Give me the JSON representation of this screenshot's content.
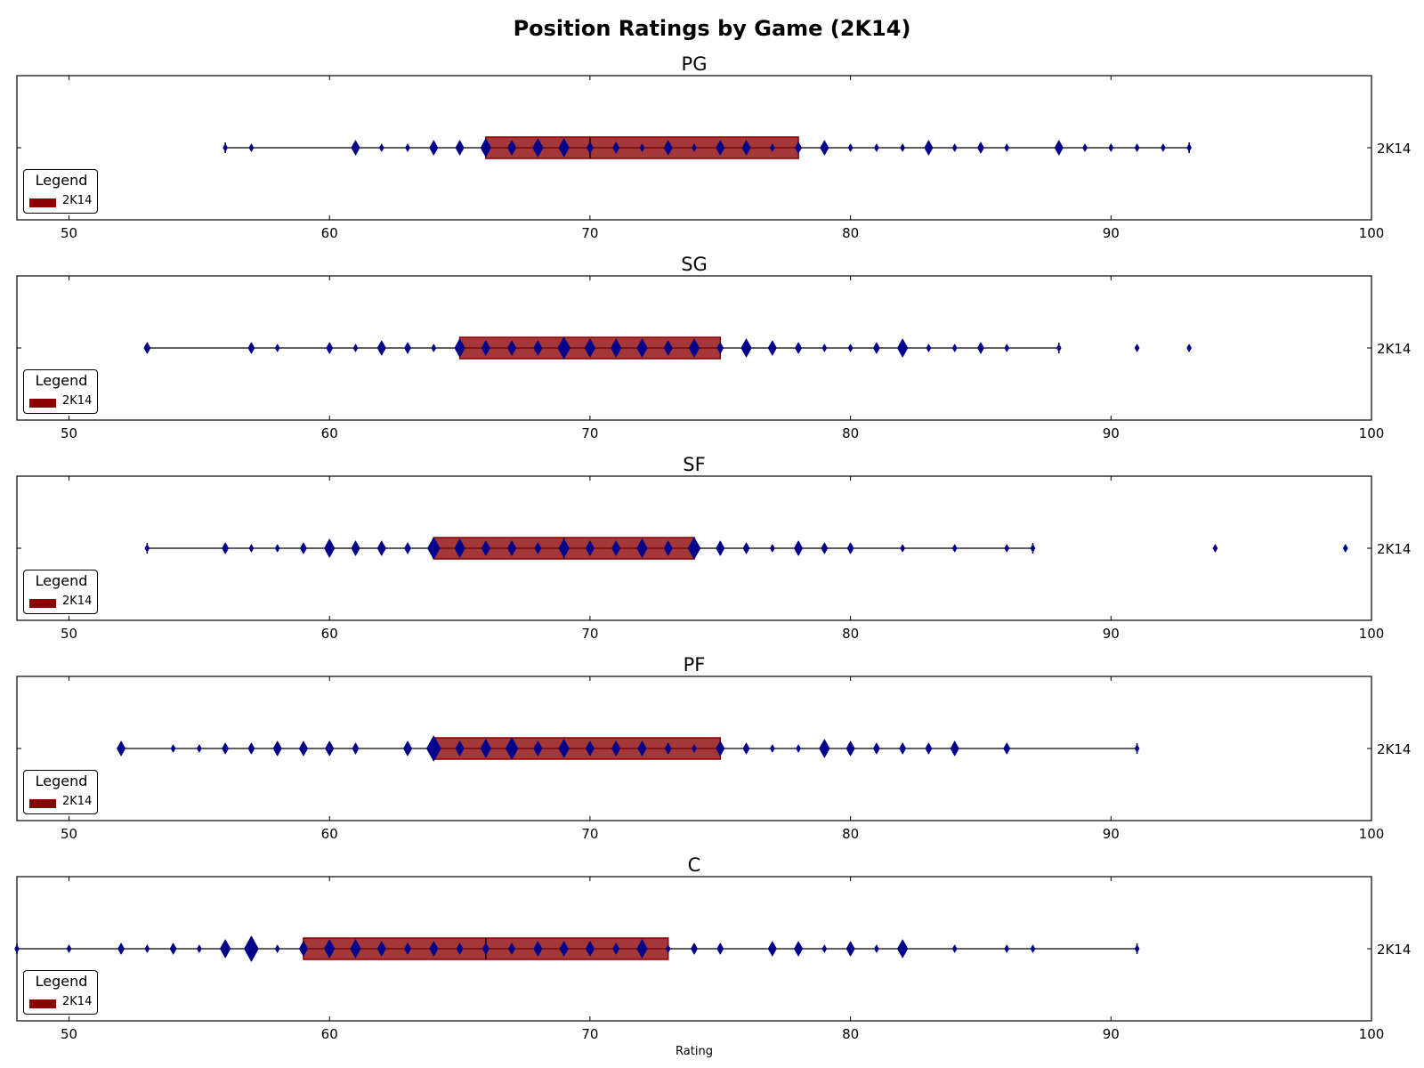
{
  "title": "Position Ratings by Game (2K14)",
  "xlabel": "Rating",
  "legend_title": "Legend",
  "colors": {
    "box": "#8b0000",
    "marker": "#00008b",
    "whisker": "#000000"
  },
  "chart_data": [
    {
      "type": "violin-box",
      "title": "PG",
      "category": "2K14",
      "legend_entry": "2K14",
      "xlim": [
        48,
        100
      ],
      "xticks": [
        50,
        60,
        70,
        80,
        90,
        100
      ],
      "box": {
        "q1": 66,
        "median": 70,
        "q3": 78
      },
      "whiskers": [
        56,
        93
      ],
      "outliers": [],
      "points": [
        {
          "x": 56,
          "n": 1
        },
        {
          "x": 57,
          "n": 1
        },
        {
          "x": 61,
          "n": 3
        },
        {
          "x": 62,
          "n": 1
        },
        {
          "x": 63,
          "n": 1
        },
        {
          "x": 64,
          "n": 3
        },
        {
          "x": 65,
          "n": 3
        },
        {
          "x": 66,
          "n": 4
        },
        {
          "x": 67,
          "n": 3
        },
        {
          "x": 68,
          "n": 4
        },
        {
          "x": 69,
          "n": 4
        },
        {
          "x": 70,
          "n": 2
        },
        {
          "x": 71,
          "n": 2
        },
        {
          "x": 72,
          "n": 1
        },
        {
          "x": 73,
          "n": 3
        },
        {
          "x": 74,
          "n": 1
        },
        {
          "x": 75,
          "n": 3
        },
        {
          "x": 76,
          "n": 3
        },
        {
          "x": 77,
          "n": 1
        },
        {
          "x": 78,
          "n": 2
        },
        {
          "x": 79,
          "n": 3
        },
        {
          "x": 80,
          "n": 1
        },
        {
          "x": 81,
          "n": 1
        },
        {
          "x": 82,
          "n": 1
        },
        {
          "x": 83,
          "n": 3
        },
        {
          "x": 84,
          "n": 1
        },
        {
          "x": 85,
          "n": 2
        },
        {
          "x": 86,
          "n": 1
        },
        {
          "x": 88,
          "n": 3
        },
        {
          "x": 89,
          "n": 1
        },
        {
          "x": 90,
          "n": 1
        },
        {
          "x": 91,
          "n": 1
        },
        {
          "x": 92,
          "n": 1
        },
        {
          "x": 93,
          "n": 1
        }
      ]
    },
    {
      "type": "violin-box",
      "title": "SG",
      "category": "2K14",
      "legend_entry": "2K14",
      "xlim": [
        48,
        100
      ],
      "xticks": [
        50,
        60,
        70,
        80,
        90,
        100
      ],
      "box": {
        "q1": 65,
        "median": 69,
        "q3": 75
      },
      "whiskers": [
        53,
        88
      ],
      "outliers": [
        91,
        93
      ],
      "points": [
        {
          "x": 53,
          "n": 2
        },
        {
          "x": 57,
          "n": 2
        },
        {
          "x": 58,
          "n": 1
        },
        {
          "x": 60,
          "n": 2
        },
        {
          "x": 61,
          "n": 1
        },
        {
          "x": 62,
          "n": 3
        },
        {
          "x": 63,
          "n": 2
        },
        {
          "x": 64,
          "n": 1
        },
        {
          "x": 65,
          "n": 4
        },
        {
          "x": 66,
          "n": 3
        },
        {
          "x": 67,
          "n": 3
        },
        {
          "x": 68,
          "n": 3
        },
        {
          "x": 69,
          "n": 5
        },
        {
          "x": 70,
          "n": 4
        },
        {
          "x": 71,
          "n": 4
        },
        {
          "x": 72,
          "n": 4
        },
        {
          "x": 73,
          "n": 3
        },
        {
          "x": 74,
          "n": 4
        },
        {
          "x": 75,
          "n": 2
        },
        {
          "x": 76,
          "n": 4
        },
        {
          "x": 77,
          "n": 3
        },
        {
          "x": 78,
          "n": 2
        },
        {
          "x": 79,
          "n": 1
        },
        {
          "x": 80,
          "n": 1
        },
        {
          "x": 81,
          "n": 2
        },
        {
          "x": 82,
          "n": 4
        },
        {
          "x": 83,
          "n": 1
        },
        {
          "x": 84,
          "n": 1
        },
        {
          "x": 85,
          "n": 2
        },
        {
          "x": 86,
          "n": 1
        },
        {
          "x": 88,
          "n": 1
        },
        {
          "x": 91,
          "n": 1
        },
        {
          "x": 93,
          "n": 1
        }
      ]
    },
    {
      "type": "violin-box",
      "title": "SF",
      "category": "2K14",
      "legend_entry": "2K14",
      "xlim": [
        48,
        100
      ],
      "xticks": [
        50,
        60,
        70,
        80,
        90,
        100
      ],
      "box": {
        "q1": 64,
        "median": 69,
        "q3": 74
      },
      "whiskers": [
        53,
        87
      ],
      "outliers": [
        94,
        99
      ],
      "points": [
        {
          "x": 53,
          "n": 1
        },
        {
          "x": 56,
          "n": 2
        },
        {
          "x": 57,
          "n": 1
        },
        {
          "x": 58,
          "n": 1
        },
        {
          "x": 59,
          "n": 2
        },
        {
          "x": 60,
          "n": 4
        },
        {
          "x": 61,
          "n": 3
        },
        {
          "x": 62,
          "n": 3
        },
        {
          "x": 63,
          "n": 2
        },
        {
          "x": 64,
          "n": 5
        },
        {
          "x": 65,
          "n": 4
        },
        {
          "x": 66,
          "n": 3
        },
        {
          "x": 67,
          "n": 3
        },
        {
          "x": 68,
          "n": 2
        },
        {
          "x": 69,
          "n": 4
        },
        {
          "x": 70,
          "n": 3
        },
        {
          "x": 71,
          "n": 3
        },
        {
          "x": 72,
          "n": 4
        },
        {
          "x": 73,
          "n": 3
        },
        {
          "x": 74,
          "n": 5
        },
        {
          "x": 75,
          "n": 3
        },
        {
          "x": 76,
          "n": 2
        },
        {
          "x": 77,
          "n": 1
        },
        {
          "x": 78,
          "n": 3
        },
        {
          "x": 79,
          "n": 2
        },
        {
          "x": 80,
          "n": 2
        },
        {
          "x": 82,
          "n": 1
        },
        {
          "x": 84,
          "n": 1
        },
        {
          "x": 86,
          "n": 1
        },
        {
          "x": 87,
          "n": 1
        },
        {
          "x": 94,
          "n": 1
        },
        {
          "x": 99,
          "n": 1
        }
      ]
    },
    {
      "type": "violin-box",
      "title": "PF",
      "category": "2K14",
      "legend_entry": "2K14",
      "xlim": [
        48,
        100
      ],
      "xticks": [
        50,
        60,
        70,
        80,
        90,
        100
      ],
      "box": {
        "q1": 64,
        "median": 67,
        "q3": 75
      },
      "whiskers": [
        52,
        91
      ],
      "outliers": [],
      "points": [
        {
          "x": 52,
          "n": 3
        },
        {
          "x": 54,
          "n": 1
        },
        {
          "x": 55,
          "n": 1
        },
        {
          "x": 56,
          "n": 2
        },
        {
          "x": 57,
          "n": 2
        },
        {
          "x": 58,
          "n": 3
        },
        {
          "x": 59,
          "n": 3
        },
        {
          "x": 60,
          "n": 3
        },
        {
          "x": 61,
          "n": 2
        },
        {
          "x": 63,
          "n": 3
        },
        {
          "x": 64,
          "n": 6
        },
        {
          "x": 65,
          "n": 3
        },
        {
          "x": 66,
          "n": 4
        },
        {
          "x": 67,
          "n": 5
        },
        {
          "x": 68,
          "n": 3
        },
        {
          "x": 69,
          "n": 4
        },
        {
          "x": 70,
          "n": 3
        },
        {
          "x": 71,
          "n": 3
        },
        {
          "x": 72,
          "n": 3
        },
        {
          "x": 73,
          "n": 2
        },
        {
          "x": 74,
          "n": 1
        },
        {
          "x": 75,
          "n": 3
        },
        {
          "x": 76,
          "n": 2
        },
        {
          "x": 77,
          "n": 1
        },
        {
          "x": 78,
          "n": 1
        },
        {
          "x": 79,
          "n": 4
        },
        {
          "x": 80,
          "n": 3
        },
        {
          "x": 81,
          "n": 2
        },
        {
          "x": 82,
          "n": 2
        },
        {
          "x": 83,
          "n": 2
        },
        {
          "x": 84,
          "n": 3
        },
        {
          "x": 86,
          "n": 2
        },
        {
          "x": 91,
          "n": 1
        }
      ]
    },
    {
      "type": "violin-box",
      "title": "C",
      "category": "2K14",
      "legend_entry": "2K14",
      "xlim": [
        48,
        100
      ],
      "xticks": [
        50,
        60,
        70,
        80,
        90,
        100
      ],
      "box": {
        "q1": 59,
        "median": 66,
        "q3": 73
      },
      "whiskers": [
        48,
        91
      ],
      "outliers": [],
      "points": [
        {
          "x": 48,
          "n": 1
        },
        {
          "x": 50,
          "n": 1
        },
        {
          "x": 52,
          "n": 2
        },
        {
          "x": 53,
          "n": 1
        },
        {
          "x": 54,
          "n": 2
        },
        {
          "x": 55,
          "n": 1
        },
        {
          "x": 56,
          "n": 4
        },
        {
          "x": 57,
          "n": 6
        },
        {
          "x": 58,
          "n": 1
        },
        {
          "x": 59,
          "n": 3
        },
        {
          "x": 60,
          "n": 4
        },
        {
          "x": 61,
          "n": 4
        },
        {
          "x": 62,
          "n": 3
        },
        {
          "x": 63,
          "n": 2
        },
        {
          "x": 64,
          "n": 3
        },
        {
          "x": 65,
          "n": 2
        },
        {
          "x": 66,
          "n": 2
        },
        {
          "x": 67,
          "n": 2
        },
        {
          "x": 68,
          "n": 3
        },
        {
          "x": 69,
          "n": 3
        },
        {
          "x": 70,
          "n": 3
        },
        {
          "x": 71,
          "n": 2
        },
        {
          "x": 72,
          "n": 4
        },
        {
          "x": 73,
          "n": 1
        },
        {
          "x": 74,
          "n": 2
        },
        {
          "x": 75,
          "n": 2
        },
        {
          "x": 77,
          "n": 3
        },
        {
          "x": 78,
          "n": 3
        },
        {
          "x": 79,
          "n": 1
        },
        {
          "x": 80,
          "n": 3
        },
        {
          "x": 81,
          "n": 1
        },
        {
          "x": 82,
          "n": 4
        },
        {
          "x": 84,
          "n": 1
        },
        {
          "x": 86,
          "n": 1
        },
        {
          "x": 87,
          "n": 1
        },
        {
          "x": 91,
          "n": 1
        }
      ]
    }
  ]
}
